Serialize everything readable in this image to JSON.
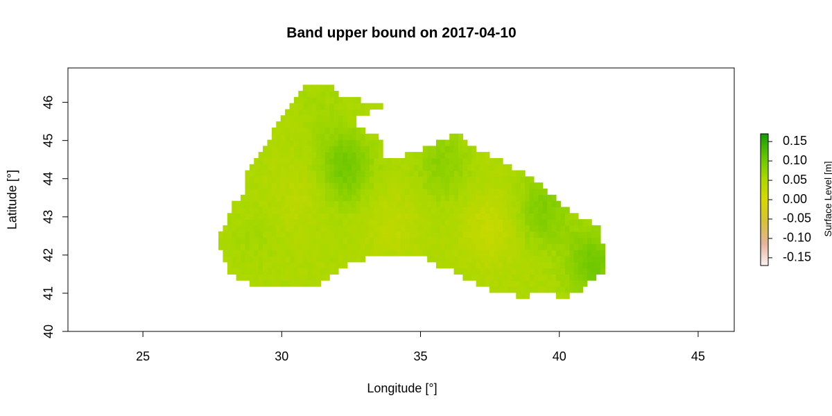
{
  "chart_data": {
    "type": "heatmap",
    "title": "Band upper bound on 2017-04-10",
    "xlabel": "Longitude [°]",
    "ylabel": "Latitude [°]",
    "xlim": [
      22.3,
      46.3
    ],
    "ylim": [
      40.0,
      46.9
    ],
    "x_ticks": [
      25,
      30,
      35,
      40,
      45
    ],
    "y_ticks": [
      40,
      41,
      42,
      43,
      44,
      45,
      46
    ],
    "colorbar": {
      "label": "Surface Level [m]",
      "ticks": [
        "0.15",
        "0.10",
        "0.05",
        "0.00",
        "-0.05",
        "-0.10",
        "-0.15"
      ],
      "tick_values": [
        0.15,
        0.1,
        0.05,
        0.0,
        -0.05,
        -0.1,
        -0.15
      ],
      "range": [
        -0.17,
        0.17
      ],
      "colors": [
        "#fbf2f2",
        "#e6b49a",
        "#d6c23b",
        "#d6d900",
        "#a8d800",
        "#62c400",
        "#159b00"
      ]
    },
    "grid": false,
    "field": {
      "description_values": "approx. surface level values over Black Sea region",
      "base_value": 0.05,
      "resolution_deg": 0.16,
      "hotspots": [
        {
          "lon": 32.3,
          "lat": 44.3,
          "value": 0.1
        },
        {
          "lon": 35.8,
          "lat": 44.4,
          "value": 0.08
        },
        {
          "lon": 39.4,
          "lat": 43.2,
          "value": 0.09
        },
        {
          "lon": 41.2,
          "lat": 41.8,
          "value": 0.1
        },
        {
          "lon": 31.5,
          "lat": 45.8,
          "value": 0.06
        },
        {
          "lon": 29.0,
          "lat": 42.5,
          "value": 0.06
        },
        {
          "lon": 37.5,
          "lat": 42.7,
          "value": 0.02
        },
        {
          "lon": 34.0,
          "lat": 42.8,
          "value": 0.03
        },
        {
          "lon": 30.5,
          "lat": 43.5,
          "value": 0.035
        }
      ],
      "sea_polygon": [
        [
          27.6,
          42.5
        ],
        [
          28.0,
          42.8
        ],
        [
          28.2,
          43.3
        ],
        [
          28.6,
          43.6
        ],
        [
          28.7,
          44.2
        ],
        [
          29.2,
          44.7
        ],
        [
          29.6,
          45.0
        ],
        [
          29.7,
          45.4
        ],
        [
          30.3,
          45.9
        ],
        [
          30.7,
          46.3
        ],
        [
          30.8,
          46.5
        ],
        [
          31.7,
          46.5
        ],
        [
          32.0,
          46.2
        ],
        [
          32.6,
          46.1
        ],
        [
          33.3,
          46.0
        ],
        [
          33.6,
          45.9
        ],
        [
          33.0,
          45.7
        ],
        [
          32.6,
          45.6
        ],
        [
          32.8,
          45.3
        ],
        [
          33.3,
          45.2
        ],
        [
          33.7,
          44.9
        ],
        [
          33.6,
          44.5
        ],
        [
          34.2,
          44.5
        ],
        [
          34.6,
          44.7
        ],
        [
          35.2,
          44.8
        ],
        [
          35.8,
          45.0
        ],
        [
          36.4,
          45.2
        ],
        [
          36.6,
          45.0
        ],
        [
          37.0,
          44.8
        ],
        [
          37.6,
          44.6
        ],
        [
          38.3,
          44.3
        ],
        [
          38.7,
          44.2
        ],
        [
          39.1,
          44.0
        ],
        [
          39.7,
          43.6
        ],
        [
          40.3,
          43.2
        ],
        [
          40.8,
          43.0
        ],
        [
          41.4,
          42.8
        ],
        [
          41.5,
          42.4
        ],
        [
          41.7,
          41.9
        ],
        [
          41.7,
          41.5
        ],
        [
          41.3,
          41.4
        ],
        [
          40.6,
          41.0
        ],
        [
          40.2,
          40.9
        ],
        [
          39.5,
          41.0
        ],
        [
          38.6,
          40.9
        ],
        [
          38.0,
          41.0
        ],
        [
          37.4,
          41.1
        ],
        [
          36.8,
          41.3
        ],
        [
          36.2,
          41.6
        ],
        [
          35.7,
          41.7
        ],
        [
          35.1,
          42.0
        ],
        [
          34.4,
          42.0
        ],
        [
          33.7,
          42.0
        ],
        [
          33.0,
          41.9
        ],
        [
          32.4,
          41.8
        ],
        [
          31.7,
          41.4
        ],
        [
          31.2,
          41.2
        ],
        [
          30.4,
          41.1
        ],
        [
          29.9,
          41.1
        ],
        [
          29.2,
          41.2
        ],
        [
          28.6,
          41.3
        ],
        [
          28.0,
          41.6
        ],
        [
          27.9,
          42.0
        ],
        [
          27.6,
          42.5
        ]
      ]
    }
  }
}
